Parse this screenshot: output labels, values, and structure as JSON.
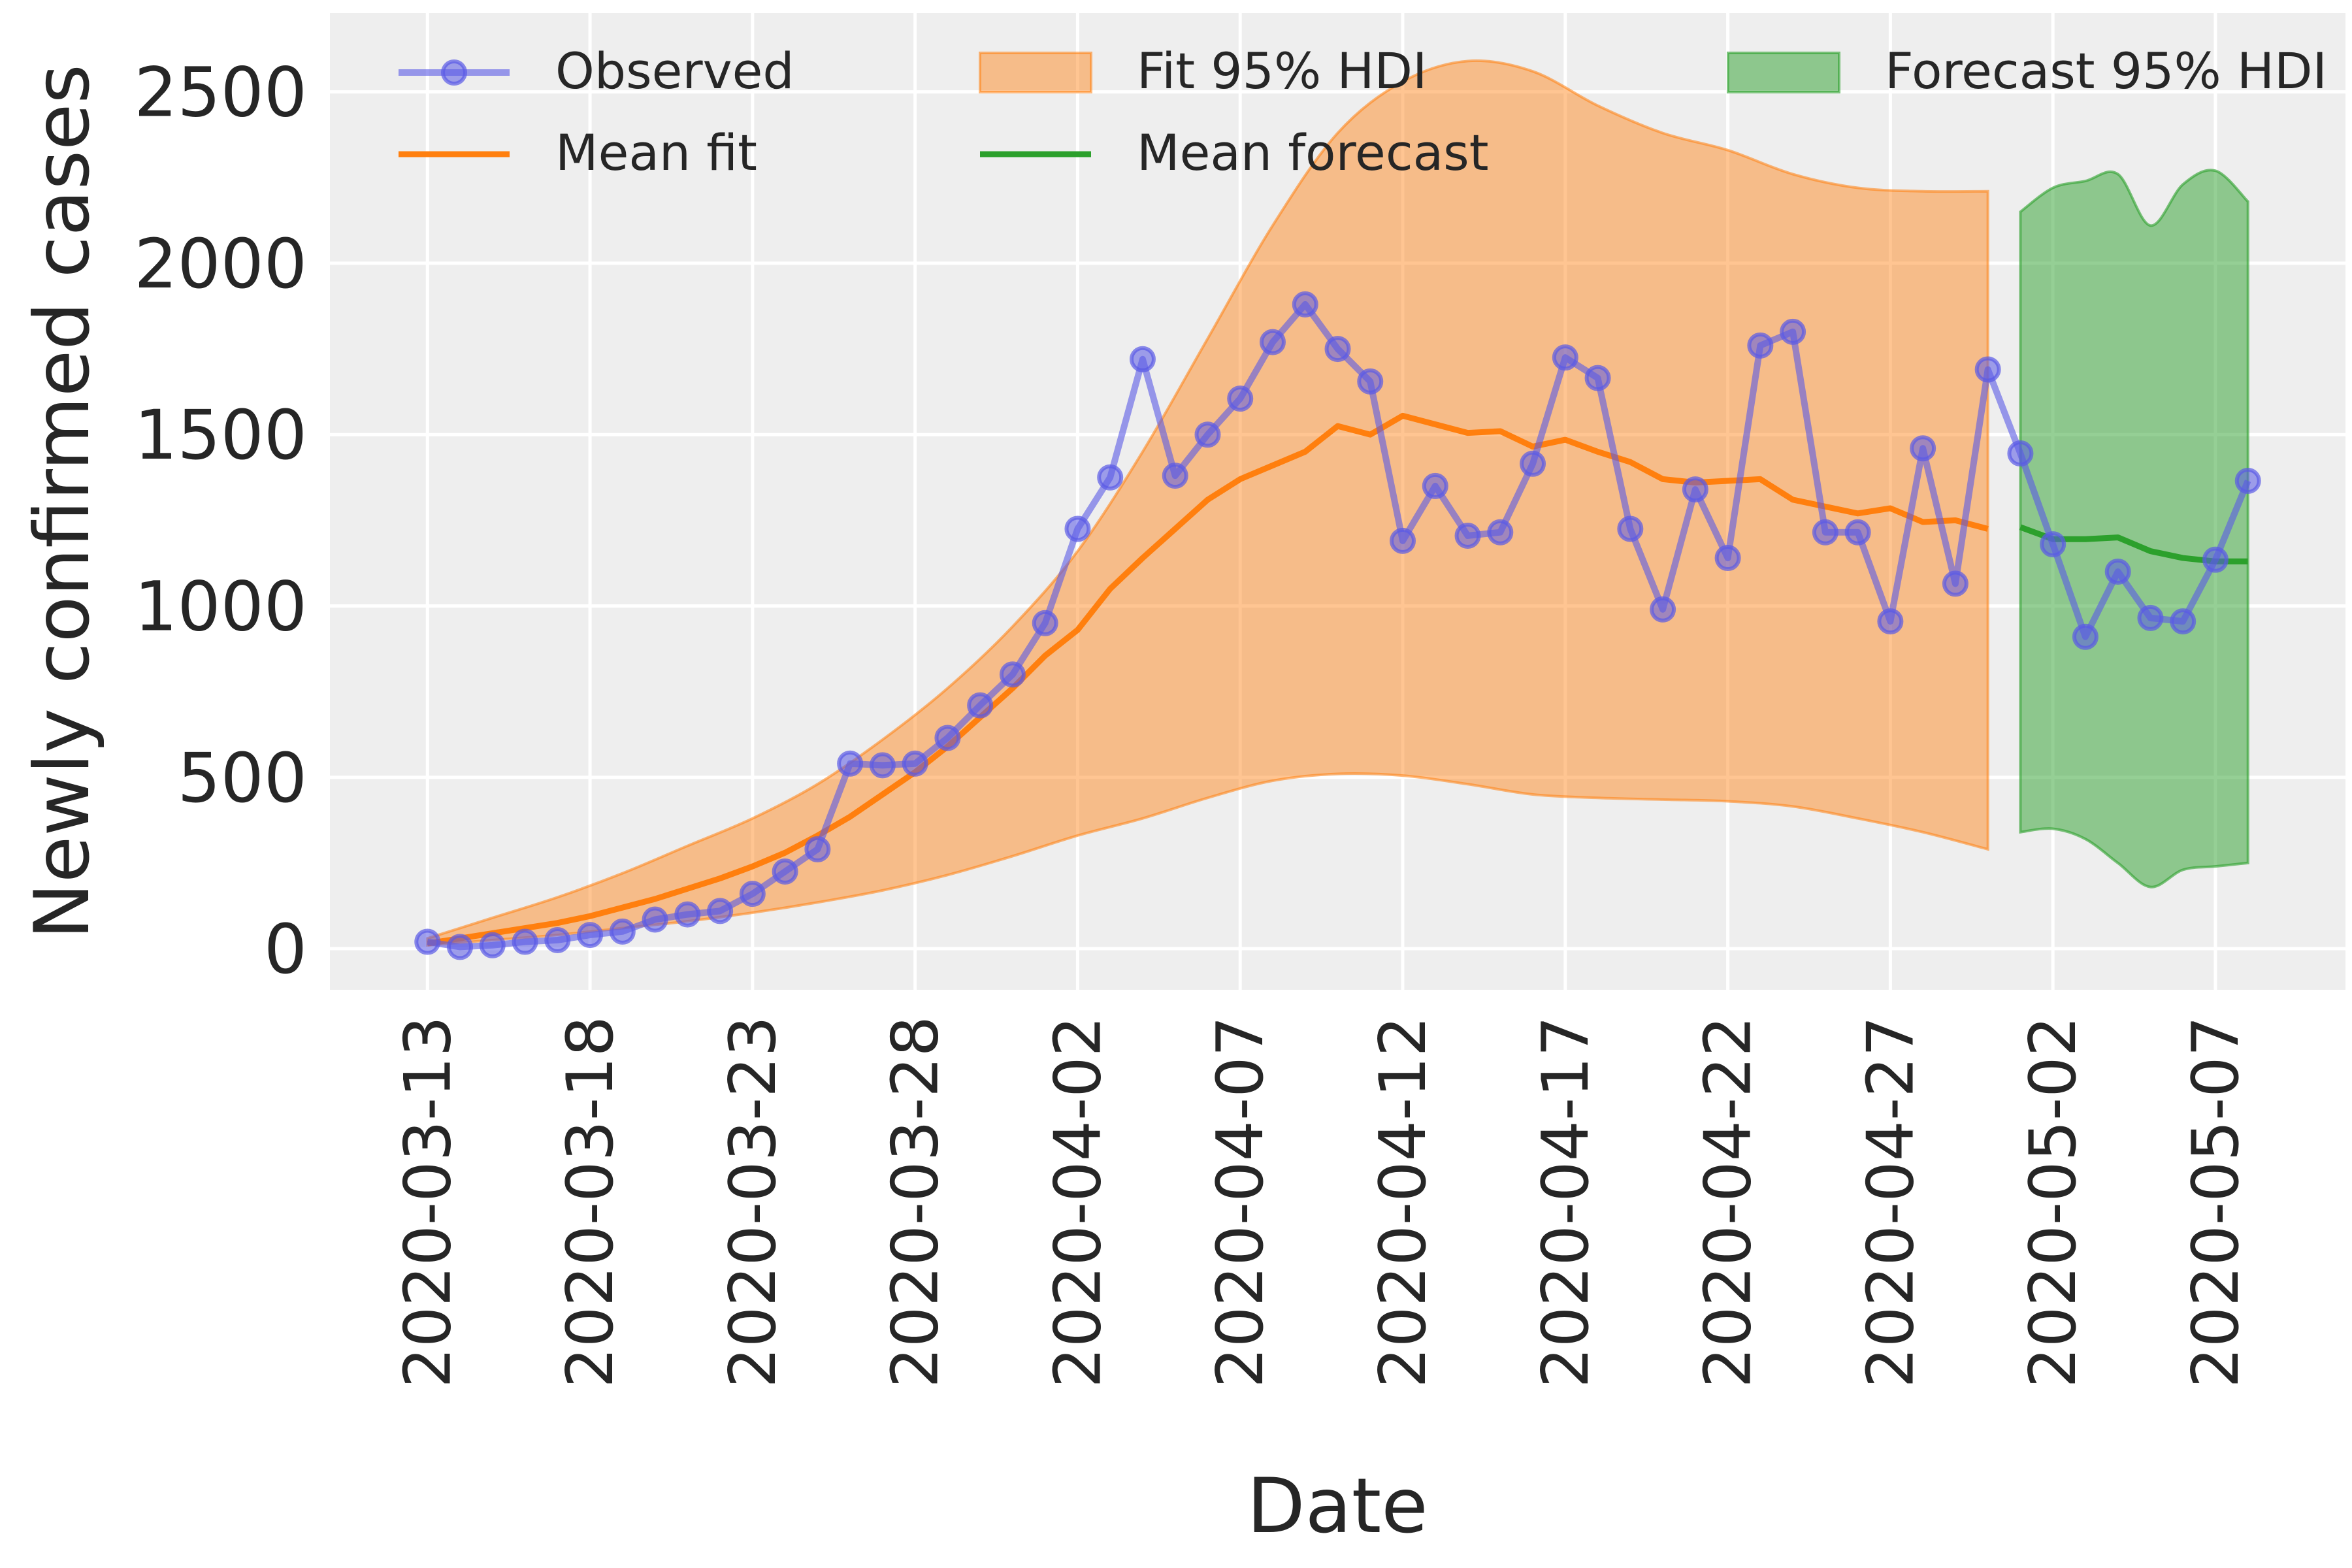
{
  "chart_data": {
    "type": "line",
    "xlabel": "Date",
    "ylabel": "Newly confirmed cases",
    "ylim": [
      -120,
      2730
    ],
    "yticks": [
      0,
      500,
      1000,
      1500,
      2000,
      2500
    ],
    "xlim": [
      "2020-03-10",
      "2020-05-11"
    ],
    "xtick_labels": [
      "2020-03-13",
      "2020-03-18",
      "2020-03-23",
      "2020-03-28",
      "2020-04-02",
      "2020-04-07",
      "2020-04-12",
      "2020-04-17",
      "2020-04-22",
      "2020-04-27",
      "2020-05-02",
      "2020-05-07"
    ],
    "grid": true,
    "legend_position": "top",
    "colors": {
      "background": "#eeeeee",
      "grid": "#ffffff",
      "observed": "#5a5ae6",
      "fit": "#ff7f0e",
      "forecast": "#2ca02c"
    },
    "legend": [
      {
        "label": "Observed",
        "kind": "observed"
      },
      {
        "label": "Fit 95% HDI",
        "kind": "fit_band"
      },
      {
        "label": "Forecast 95% HDI",
        "kind": "forecast_band"
      },
      {
        "label": "Mean fit",
        "kind": "fit_line"
      },
      {
        "label": "Mean forecast",
        "kind": "forecast_line"
      }
    ],
    "series": [
      {
        "name": "Observed",
        "dates": [
          "2020-03-13",
          "2020-03-14",
          "2020-03-15",
          "2020-03-16",
          "2020-03-17",
          "2020-03-18",
          "2020-03-19",
          "2020-03-20",
          "2020-03-21",
          "2020-03-22",
          "2020-03-23",
          "2020-03-24",
          "2020-03-25",
          "2020-03-26",
          "2020-03-27",
          "2020-03-28",
          "2020-03-29",
          "2020-03-30",
          "2020-03-31",
          "2020-04-01",
          "2020-04-02",
          "2020-04-03",
          "2020-04-04",
          "2020-04-05",
          "2020-04-06",
          "2020-04-07",
          "2020-04-08",
          "2020-04-09",
          "2020-04-10",
          "2020-04-11",
          "2020-04-12",
          "2020-04-13",
          "2020-04-14",
          "2020-04-15",
          "2020-04-16",
          "2020-04-17",
          "2020-04-18",
          "2020-04-19",
          "2020-04-20",
          "2020-04-21",
          "2020-04-22",
          "2020-04-23",
          "2020-04-24",
          "2020-04-25",
          "2020-04-26",
          "2020-04-27",
          "2020-04-28",
          "2020-04-29",
          "2020-04-30",
          "2020-05-01",
          "2020-05-02",
          "2020-05-03",
          "2020-05-04",
          "2020-05-05",
          "2020-05-06",
          "2020-05-07",
          "2020-05-08"
        ],
        "values": [
          20,
          5,
          10,
          20,
          25,
          40,
          50,
          85,
          100,
          110,
          160,
          225,
          290,
          540,
          535,
          540,
          615,
          710,
          800,
          950,
          1225,
          1375,
          1720,
          1380,
          1500,
          1605,
          1770,
          1880,
          1750,
          1655,
          1190,
          1350,
          1205,
          1215,
          1415,
          1725,
          1665,
          1225,
          990,
          1340,
          1140,
          1760,
          1800,
          1215,
          1215,
          955,
          1460,
          1065,
          1690,
          1445,
          1180,
          910,
          1100,
          965,
          955,
          1135,
          1365
        ]
      },
      {
        "name": "Mean fit",
        "dates": [
          "2020-03-13",
          "2020-03-14",
          "2020-03-15",
          "2020-03-16",
          "2020-03-17",
          "2020-03-18",
          "2020-03-19",
          "2020-03-20",
          "2020-03-21",
          "2020-03-22",
          "2020-03-23",
          "2020-03-24",
          "2020-03-25",
          "2020-03-26",
          "2020-03-27",
          "2020-03-28",
          "2020-03-29",
          "2020-03-30",
          "2020-03-31",
          "2020-04-01",
          "2020-04-02",
          "2020-04-03",
          "2020-04-04",
          "2020-04-05",
          "2020-04-06",
          "2020-04-07",
          "2020-04-08",
          "2020-04-09",
          "2020-04-10",
          "2020-04-11",
          "2020-04-12",
          "2020-04-13",
          "2020-04-14",
          "2020-04-15",
          "2020-04-16",
          "2020-04-17",
          "2020-04-18",
          "2020-04-19",
          "2020-04-20",
          "2020-04-21",
          "2020-04-22",
          "2020-04-23",
          "2020-04-24",
          "2020-04-25",
          "2020-04-26",
          "2020-04-27",
          "2020-04-28",
          "2020-04-29",
          "2020-04-30"
        ],
        "values": [
          15,
          30,
          45,
          60,
          75,
          95,
          120,
          145,
          175,
          205,
          240,
          280,
          330,
          385,
          450,
          515,
          590,
          675,
          760,
          855,
          930,
          1050,
          1140,
          1225,
          1310,
          1370,
          1410,
          1450,
          1525,
          1500,
          1555,
          1530,
          1505,
          1510,
          1465,
          1485,
          1450,
          1420,
          1370,
          1360,
          1365,
          1370,
          1310,
          1290,
          1270,
          1285,
          1245,
          1250,
          1225
        ]
      },
      {
        "name": "Mean forecast",
        "dates": [
          "2020-05-01",
          "2020-05-02",
          "2020-05-03",
          "2020-05-04",
          "2020-05-05",
          "2020-05-06",
          "2020-05-07",
          "2020-05-08"
        ],
        "values": [
          1230,
          1195,
          1195,
          1200,
          1160,
          1140,
          1130,
          1130
        ]
      },
      {
        "name": "Fit 95% HDI",
        "dates": [
          "2020-03-13",
          "2020-03-15",
          "2020-03-17",
          "2020-03-19",
          "2020-03-21",
          "2020-03-23",
          "2020-03-25",
          "2020-03-27",
          "2020-03-29",
          "2020-03-31",
          "2020-04-02",
          "2020-04-04",
          "2020-04-06",
          "2020-04-08",
          "2020-04-10",
          "2020-04-12",
          "2020-04-14",
          "2020-04-16",
          "2020-04-18",
          "2020-04-20",
          "2020-04-22",
          "2020-04-24",
          "2020-04-26",
          "2020-04-28",
          "2020-04-30"
        ],
        "upper": [
          30,
          90,
          150,
          220,
          300,
          380,
          480,
          610,
          760,
          940,
          1160,
          1450,
          1780,
          2110,
          2380,
          2530,
          2590,
          2560,
          2460,
          2380,
          2330,
          2260,
          2220,
          2210,
          2210
        ],
        "lower": [
          10,
          25,
          40,
          60,
          80,
          105,
          135,
          170,
          215,
          270,
          330,
          380,
          440,
          490,
          510,
          505,
          480,
          450,
          440,
          435,
          430,
          415,
          380,
          340,
          290
        ]
      },
      {
        "name": "Forecast 95% HDI",
        "dates": [
          "2020-05-01",
          "2020-05-02",
          "2020-05-03",
          "2020-05-04",
          "2020-05-05",
          "2020-05-06",
          "2020-05-07",
          "2020-05-08"
        ],
        "upper": [
          2150,
          2220,
          2240,
          2260,
          2110,
          2230,
          2270,
          2180
        ],
        "lower": [
          340,
          350,
          320,
          250,
          180,
          230,
          240,
          250
        ]
      }
    ]
  }
}
